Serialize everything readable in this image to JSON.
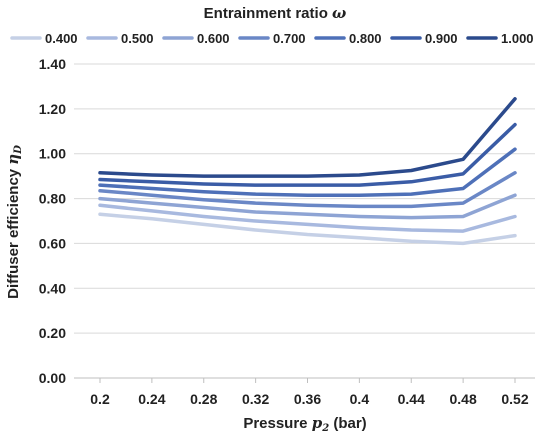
{
  "chart_data": {
    "type": "line",
    "legend_title_text": "Entrainment ratio",
    "legend_title_symbol": "ω",
    "legend_placement": "top",
    "xlabel_text": "Pressure",
    "xlabel_symbol": "p",
    "xlabel_subscript": "2",
    "xlabel_unit": "(bar)",
    "ylabel_text": "Diffuser efficiency",
    "ylabel_symbol": "η",
    "ylabel_subscript": "D",
    "ylim": [
      0,
      1.4
    ],
    "grid": "horizontal",
    "x": [
      0.2,
      0.24,
      0.28,
      0.32,
      0.36,
      0.4,
      0.44,
      0.48,
      0.52
    ],
    "x_tick_labels": [
      "0.2",
      "0.24",
      "0.28",
      "0.32",
      "0.36",
      "0.4",
      "0.44",
      "0.48",
      "0.52"
    ],
    "y_ticks": [
      0,
      0.2,
      0.4,
      0.6,
      0.8,
      1.0,
      1.2,
      1.4
    ],
    "y_tick_labels": [
      "0.00",
      "0.20",
      "0.40",
      "0.60",
      "0.80",
      "1.00",
      "1.20",
      "1.40"
    ],
    "series": [
      {
        "name": "0.400",
        "color": "#c5d0e6",
        "values": [
          0.73,
          0.71,
          0.685,
          0.66,
          0.64,
          0.625,
          0.61,
          0.6,
          0.635
        ]
      },
      {
        "name": "0.500",
        "color": "#a8b9df",
        "values": [
          0.77,
          0.745,
          0.72,
          0.7,
          0.685,
          0.67,
          0.66,
          0.655,
          0.72
        ]
      },
      {
        "name": "0.600",
        "color": "#8ea4d4",
        "values": [
          0.8,
          0.78,
          0.76,
          0.74,
          0.73,
          0.72,
          0.715,
          0.72,
          0.815
        ]
      },
      {
        "name": "0.700",
        "color": "#6a87c6",
        "values": [
          0.835,
          0.815,
          0.795,
          0.78,
          0.77,
          0.765,
          0.765,
          0.78,
          0.915
        ]
      },
      {
        "name": "0.800",
        "color": "#4e70b8",
        "values": [
          0.86,
          0.845,
          0.83,
          0.82,
          0.815,
          0.815,
          0.82,
          0.845,
          1.02
        ]
      },
      {
        "name": "0.900",
        "color": "#3a5ca6",
        "values": [
          0.885,
          0.875,
          0.865,
          0.86,
          0.86,
          0.86,
          0.875,
          0.91,
          1.13
        ]
      },
      {
        "name": "1.000",
        "color": "#2b4a8c",
        "values": [
          0.915,
          0.905,
          0.9,
          0.9,
          0.9,
          0.905,
          0.925,
          0.975,
          1.245
        ]
      }
    ]
  }
}
